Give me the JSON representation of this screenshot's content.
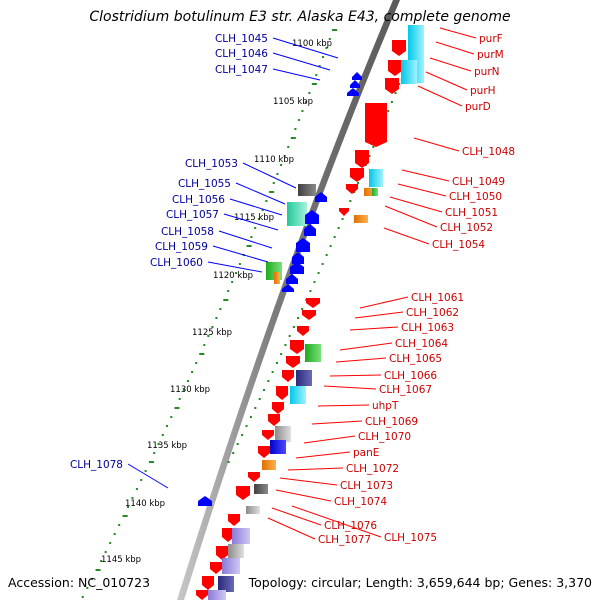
{
  "title": "Clostridium botulinum E3 str. Alaska E43, complete genome",
  "footer": {
    "accession": "Accession: NC_010723",
    "topology": "Topology: circular; Length: 3,659,644 bp; Genes: 3,370"
  },
  "colors": {
    "forward": "#ff0000",
    "reverse": "#0000ff",
    "forward_label": "#cc0000",
    "reverse_label": "#000099",
    "tick_dots": "#228b22",
    "backbone": "#808080"
  },
  "scale_labels": [
    "1100 kbp",
    "1105 kbp",
    "1110 kbp",
    "1115 kbp",
    "1120 kbp",
    "1125 kbp",
    "1130 kbp",
    "1135 kbp",
    "1140 kbp",
    "1145 kbp"
  ],
  "reverse_genes": [
    "CLH_1045",
    "CLH_1046",
    "CLH_1047",
    "CLH_1053",
    "CLH_1055",
    "CLH_1056",
    "CLH_1057",
    "CLH_1058",
    "CLH_1059",
    "CLH_1060",
    "CLH_1078"
  ],
  "forward_genes": [
    "purF",
    "purM",
    "purN",
    "purH",
    "purD",
    "CLH_1048",
    "CLH_1049",
    "CLH_1050",
    "CLH_1051",
    "CLH_1052",
    "CLH_1054",
    "CLH_1061",
    "CLH_1062",
    "CLH_1063",
    "CLH_1064",
    "CLH_1065",
    "CLH_1066",
    "CLH_1067",
    "uhpT",
    "CLH_1069",
    "CLH_1070",
    "panE",
    "CLH_1072",
    "CLH_1073",
    "CLH_1074",
    "CLH_1076",
    "CLH_1077",
    "CLH_1075"
  ]
}
